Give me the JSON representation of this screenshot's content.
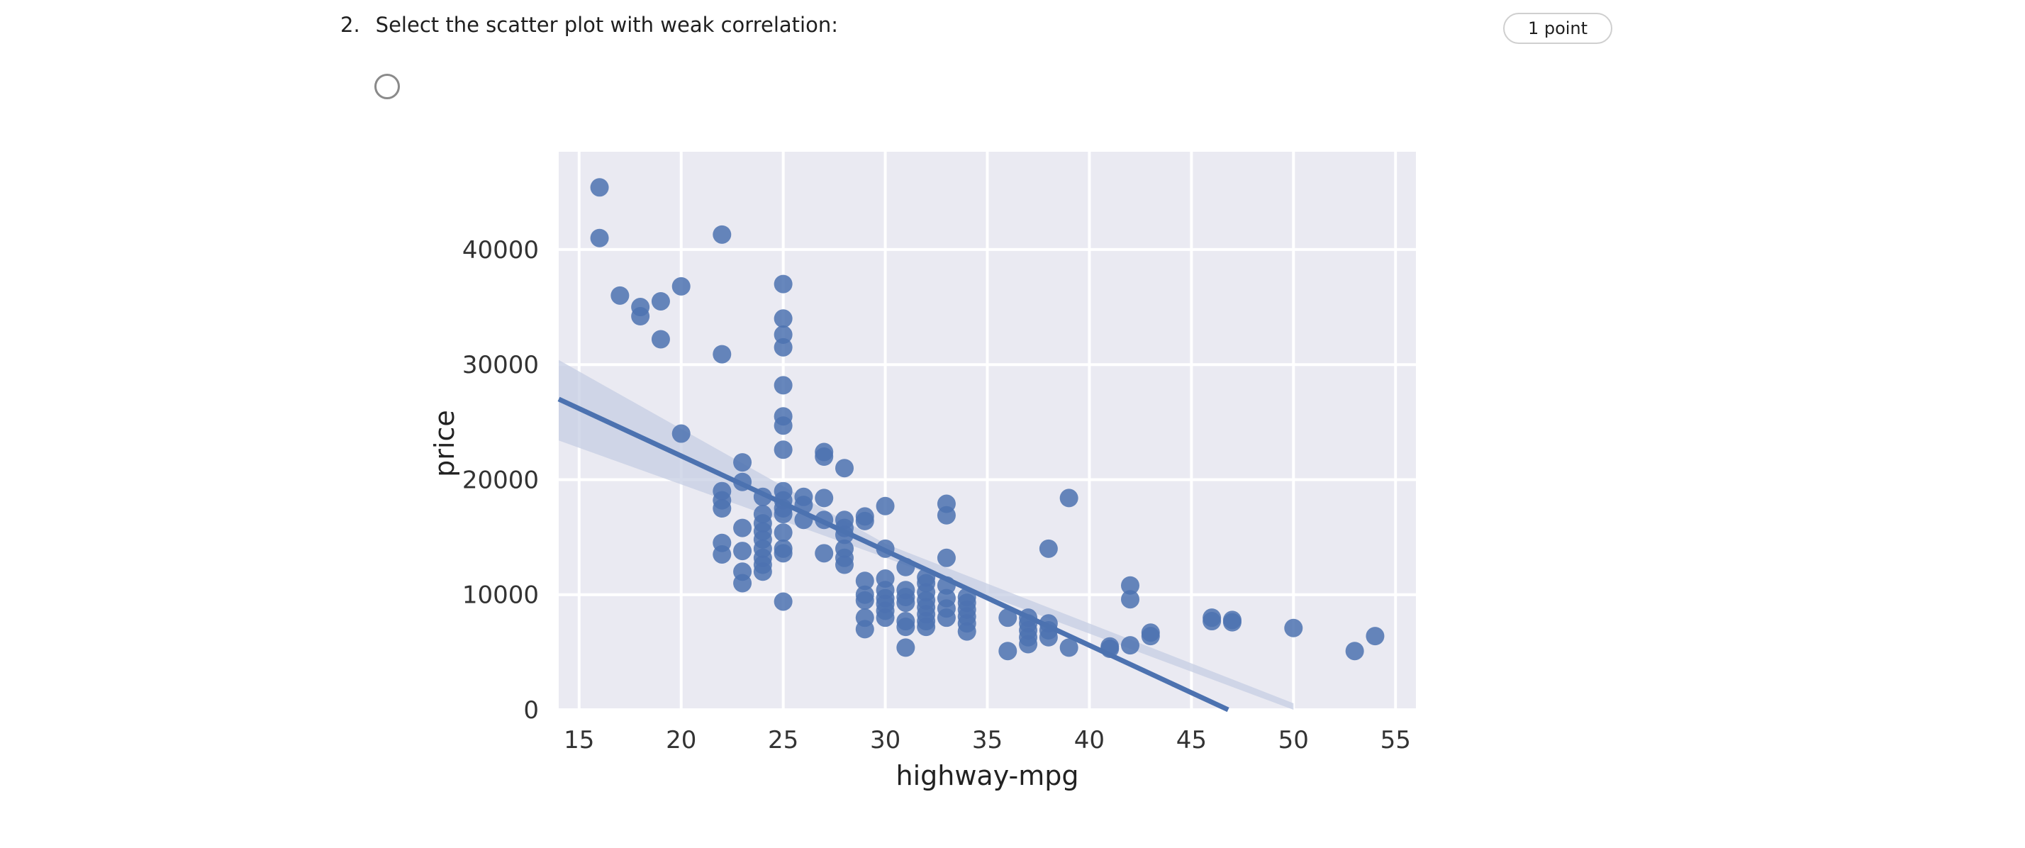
{
  "question": {
    "number": "2.",
    "text": "Select the scatter plot with weak correlation:",
    "points": "1 point"
  },
  "chart_data": {
    "type": "scatter",
    "xlabel": "highway-mpg",
    "ylabel": "price",
    "xlim": [
      14,
      56
    ],
    "ylim": [
      0,
      48500
    ],
    "x_ticks": [
      15,
      20,
      25,
      30,
      35,
      40,
      45,
      50,
      55
    ],
    "y_ticks": [
      0,
      10000,
      20000,
      30000,
      40000
    ],
    "grid": true,
    "background": "#eaeaf2",
    "point_color": "#4c72b0",
    "regression": {
      "x0": 14,
      "y0": 27000,
      "x1": 46.8,
      "y1": 0,
      "ci_color": "#c6cde3"
    },
    "points": [
      [
        16,
        45400
      ],
      [
        16,
        41000
      ],
      [
        17,
        36000
      ],
      [
        18,
        35000
      ],
      [
        18,
        34200
      ],
      [
        19,
        35500
      ],
      [
        19,
        32200
      ],
      [
        20,
        36800
      ],
      [
        20,
        24000
      ],
      [
        22,
        41300
      ],
      [
        22,
        30900
      ],
      [
        22,
        19000
      ],
      [
        22,
        18200
      ],
      [
        22,
        17500
      ],
      [
        22,
        14500
      ],
      [
        22,
        13500
      ],
      [
        23,
        21500
      ],
      [
        23,
        19800
      ],
      [
        23,
        15800
      ],
      [
        23,
        13800
      ],
      [
        23,
        12000
      ],
      [
        23,
        11000
      ],
      [
        24,
        18500
      ],
      [
        24,
        17000
      ],
      [
        24,
        16200
      ],
      [
        24,
        15500
      ],
      [
        24,
        14800
      ],
      [
        24,
        14000
      ],
      [
        24,
        13200
      ],
      [
        24,
        12600
      ],
      [
        24,
        12000
      ],
      [
        25,
        37000
      ],
      [
        25,
        34000
      ],
      [
        25,
        32600
      ],
      [
        25,
        31500
      ],
      [
        25,
        28200
      ],
      [
        25,
        25500
      ],
      [
        25,
        24700
      ],
      [
        25,
        22600
      ],
      [
        25,
        19000
      ],
      [
        25,
        18200
      ],
      [
        25,
        17500
      ],
      [
        25,
        17000
      ],
      [
        25,
        15400
      ],
      [
        25,
        14000
      ],
      [
        25,
        13600
      ],
      [
        25,
        9400
      ],
      [
        26,
        18500
      ],
      [
        26,
        17800
      ],
      [
        26,
        16500
      ],
      [
        27,
        22400
      ],
      [
        27,
        22000
      ],
      [
        27,
        18400
      ],
      [
        27,
        16500
      ],
      [
        27,
        13600
      ],
      [
        28,
        21000
      ],
      [
        28,
        16500
      ],
      [
        28,
        15800
      ],
      [
        28,
        15200
      ],
      [
        28,
        14000
      ],
      [
        28,
        13200
      ],
      [
        28,
        12600
      ],
      [
        29,
        16800
      ],
      [
        29,
        16400
      ],
      [
        29,
        11200
      ],
      [
        29,
        10000
      ],
      [
        29,
        9500
      ],
      [
        29,
        8000
      ],
      [
        29,
        7000
      ],
      [
        30,
        17700
      ],
      [
        30,
        14000
      ],
      [
        30,
        11400
      ],
      [
        30,
        10400
      ],
      [
        30,
        9700
      ],
      [
        30,
        9200
      ],
      [
        30,
        8600
      ],
      [
        30,
        8000
      ],
      [
        31,
        12400
      ],
      [
        31,
        10400
      ],
      [
        31,
        9800
      ],
      [
        31,
        9300
      ],
      [
        31,
        7700
      ],
      [
        31,
        7200
      ],
      [
        31,
        5400
      ],
      [
        32,
        11500
      ],
      [
        32,
        11000
      ],
      [
        32,
        10200
      ],
      [
        32,
        9500
      ],
      [
        32,
        8900
      ],
      [
        32,
        8300
      ],
      [
        32,
        7700
      ],
      [
        32,
        7200
      ],
      [
        33,
        17900
      ],
      [
        33,
        16900
      ],
      [
        33,
        13200
      ],
      [
        33,
        10800
      ],
      [
        33,
        9700
      ],
      [
        33,
        8800
      ],
      [
        33,
        8000
      ],
      [
        34,
        9800
      ],
      [
        34,
        9300
      ],
      [
        34,
        8700
      ],
      [
        34,
        8100
      ],
      [
        34,
        7500
      ],
      [
        34,
        6800
      ],
      [
        36,
        8000
      ],
      [
        36,
        5100
      ],
      [
        37,
        8000
      ],
      [
        37,
        7500
      ],
      [
        37,
        6900
      ],
      [
        37,
        6300
      ],
      [
        37,
        5700
      ],
      [
        38,
        14000
      ],
      [
        38,
        7500
      ],
      [
        38,
        6900
      ],
      [
        38,
        6300
      ],
      [
        39,
        18400
      ],
      [
        39,
        5400
      ],
      [
        41,
        5500
      ],
      [
        41,
        5300
      ],
      [
        42,
        10800
      ],
      [
        42,
        9600
      ],
      [
        42,
        5600
      ],
      [
        43,
        6700
      ],
      [
        43,
        6400
      ],
      [
        46,
        8000
      ],
      [
        46,
        7700
      ],
      [
        47,
        7800
      ],
      [
        47,
        7600
      ],
      [
        50,
        7100
      ],
      [
        53,
        5100
      ],
      [
        54,
        6400
      ]
    ]
  }
}
